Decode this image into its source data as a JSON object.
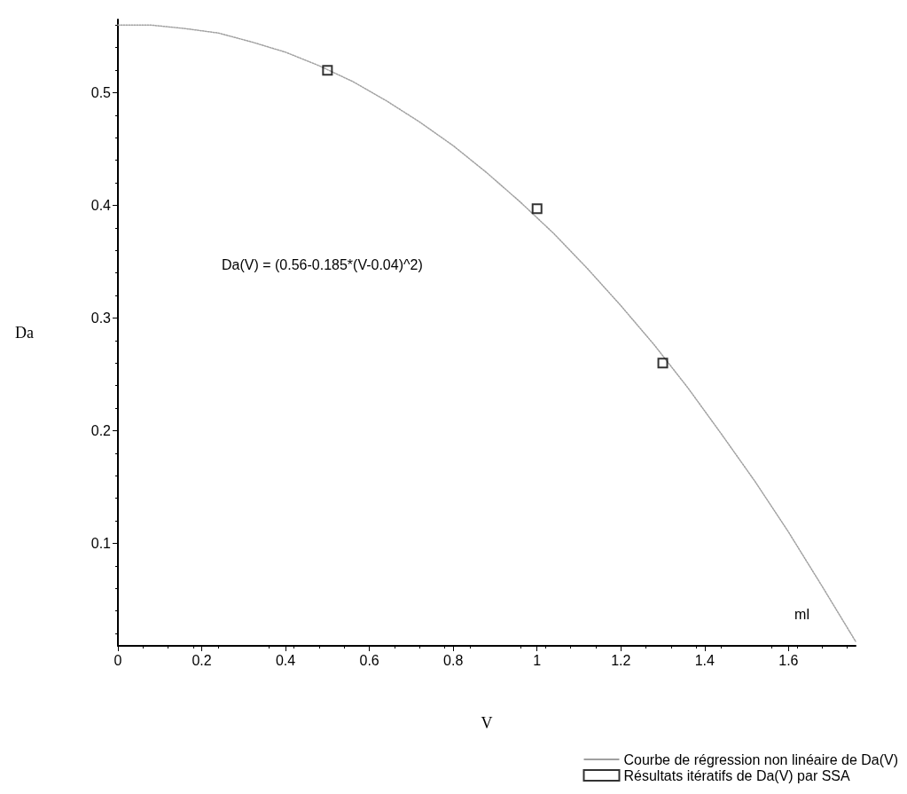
{
  "chart_data": {
    "type": "line",
    "xlabel": "V",
    "ylabel": "Da",
    "annotations": [
      "Da(V) = (0.56-0.185*(V-0.04)^2)",
      "ml"
    ],
    "series": [
      {
        "name": "Courbe de régression non linéaire de Da(V)",
        "color": "#a0a0a0",
        "marker": "none",
        "line_style": "dotted",
        "x": [
          0,
          0.08,
          0.16,
          0.24,
          0.32,
          0.4,
          0.48,
          0.56,
          0.64,
          0.72,
          0.8,
          0.88,
          0.96,
          1.04,
          1.12,
          1.2,
          1.28,
          1.36,
          1.44,
          1.52,
          1.6,
          1.68,
          1.76
        ],
        "values": [
          0.56,
          0.56,
          0.557,
          0.553,
          0.545,
          0.536,
          0.524,
          0.51,
          0.493,
          0.474,
          0.453,
          0.429,
          0.403,
          0.375,
          0.344,
          0.311,
          0.276,
          0.238,
          0.197,
          0.155,
          0.11,
          0.062,
          0.013
        ]
      },
      {
        "name": "Résultats itératifs de Da(V) par SSA",
        "type": "scatter",
        "color": "#000000",
        "marker": "square",
        "x": [
          0.5,
          1.0,
          1.3
        ],
        "values": [
          0.52,
          0.397,
          0.26
        ]
      }
    ],
    "xlim": [
      0,
      1.76
    ],
    "ylim": [
      0.009,
      0.565
    ],
    "xticks": [
      0,
      0.2,
      0.4,
      0.6,
      0.8,
      1,
      1.2,
      1.4,
      1.6
    ],
    "yticks": [
      0.1,
      0.2,
      0.3,
      0.4,
      0.5
    ],
    "grid": false,
    "legend": "bottom right"
  }
}
